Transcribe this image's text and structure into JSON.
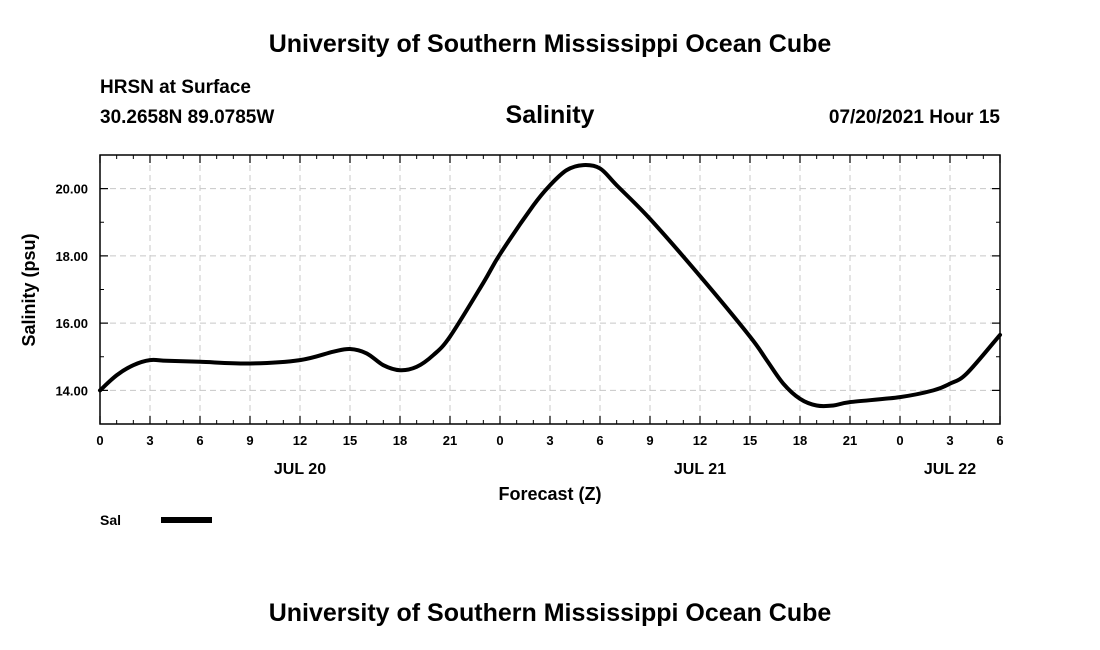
{
  "header": {
    "title": "University of Southern Mississippi Ocean Cube",
    "station": "HRSN at Surface",
    "coords": "30.2658N  89.0785W",
    "variable": "Salinity",
    "datetime": "07/20/2021 Hour 15"
  },
  "footer": {
    "title": "University of Southern Mississippi Ocean Cube"
  },
  "chart_data": {
    "type": "line",
    "title": "Salinity",
    "xlabel": "Forecast (Z)",
    "ylabel": "Salinity (psu)",
    "xlim": [
      0,
      54
    ],
    "ylim": [
      13.0,
      21.0
    ],
    "grid": true,
    "x_tick_labels": [
      "0",
      "3",
      "6",
      "9",
      "12",
      "15",
      "18",
      "21",
      "0",
      "3",
      "6",
      "9",
      "12",
      "15",
      "18",
      "21",
      "0",
      "3",
      "6"
    ],
    "y_ticks": [
      14.0,
      16.0,
      18.0,
      20.0
    ],
    "y_tick_labels": [
      "14.00",
      "16.00",
      "18.00",
      "20.00"
    ],
    "date_labels": [
      {
        "label": "JUL 20",
        "hour": 12
      },
      {
        "label": "JUL 21",
        "hour": 36
      },
      {
        "label": "JUL 22",
        "hour": 51
      }
    ],
    "legend": {
      "position": "bottom-left",
      "entries": [
        {
          "name": "Sal",
          "color": "#000000"
        }
      ]
    },
    "series": [
      {
        "name": "Sal",
        "color": "#000000",
        "x": [
          0,
          1,
          2,
          3,
          4,
          6,
          9,
          12,
          14,
          15,
          16,
          17,
          18,
          19,
          20,
          21,
          23,
          24,
          26,
          27,
          28,
          29,
          30,
          31,
          33,
          36,
          39,
          40,
          41,
          42,
          43,
          44,
          45,
          48,
          50,
          51,
          52,
          54
        ],
        "y": [
          14.0,
          14.45,
          14.75,
          14.9,
          14.88,
          14.85,
          14.8,
          14.9,
          15.15,
          15.23,
          15.1,
          14.75,
          14.6,
          14.7,
          15.05,
          15.6,
          17.2,
          18.05,
          19.5,
          20.1,
          20.55,
          20.7,
          20.6,
          20.1,
          19.1,
          17.4,
          15.6,
          14.9,
          14.2,
          13.75,
          13.55,
          13.55,
          13.65,
          13.8,
          14.0,
          14.2,
          14.5,
          15.65
        ]
      }
    ]
  }
}
